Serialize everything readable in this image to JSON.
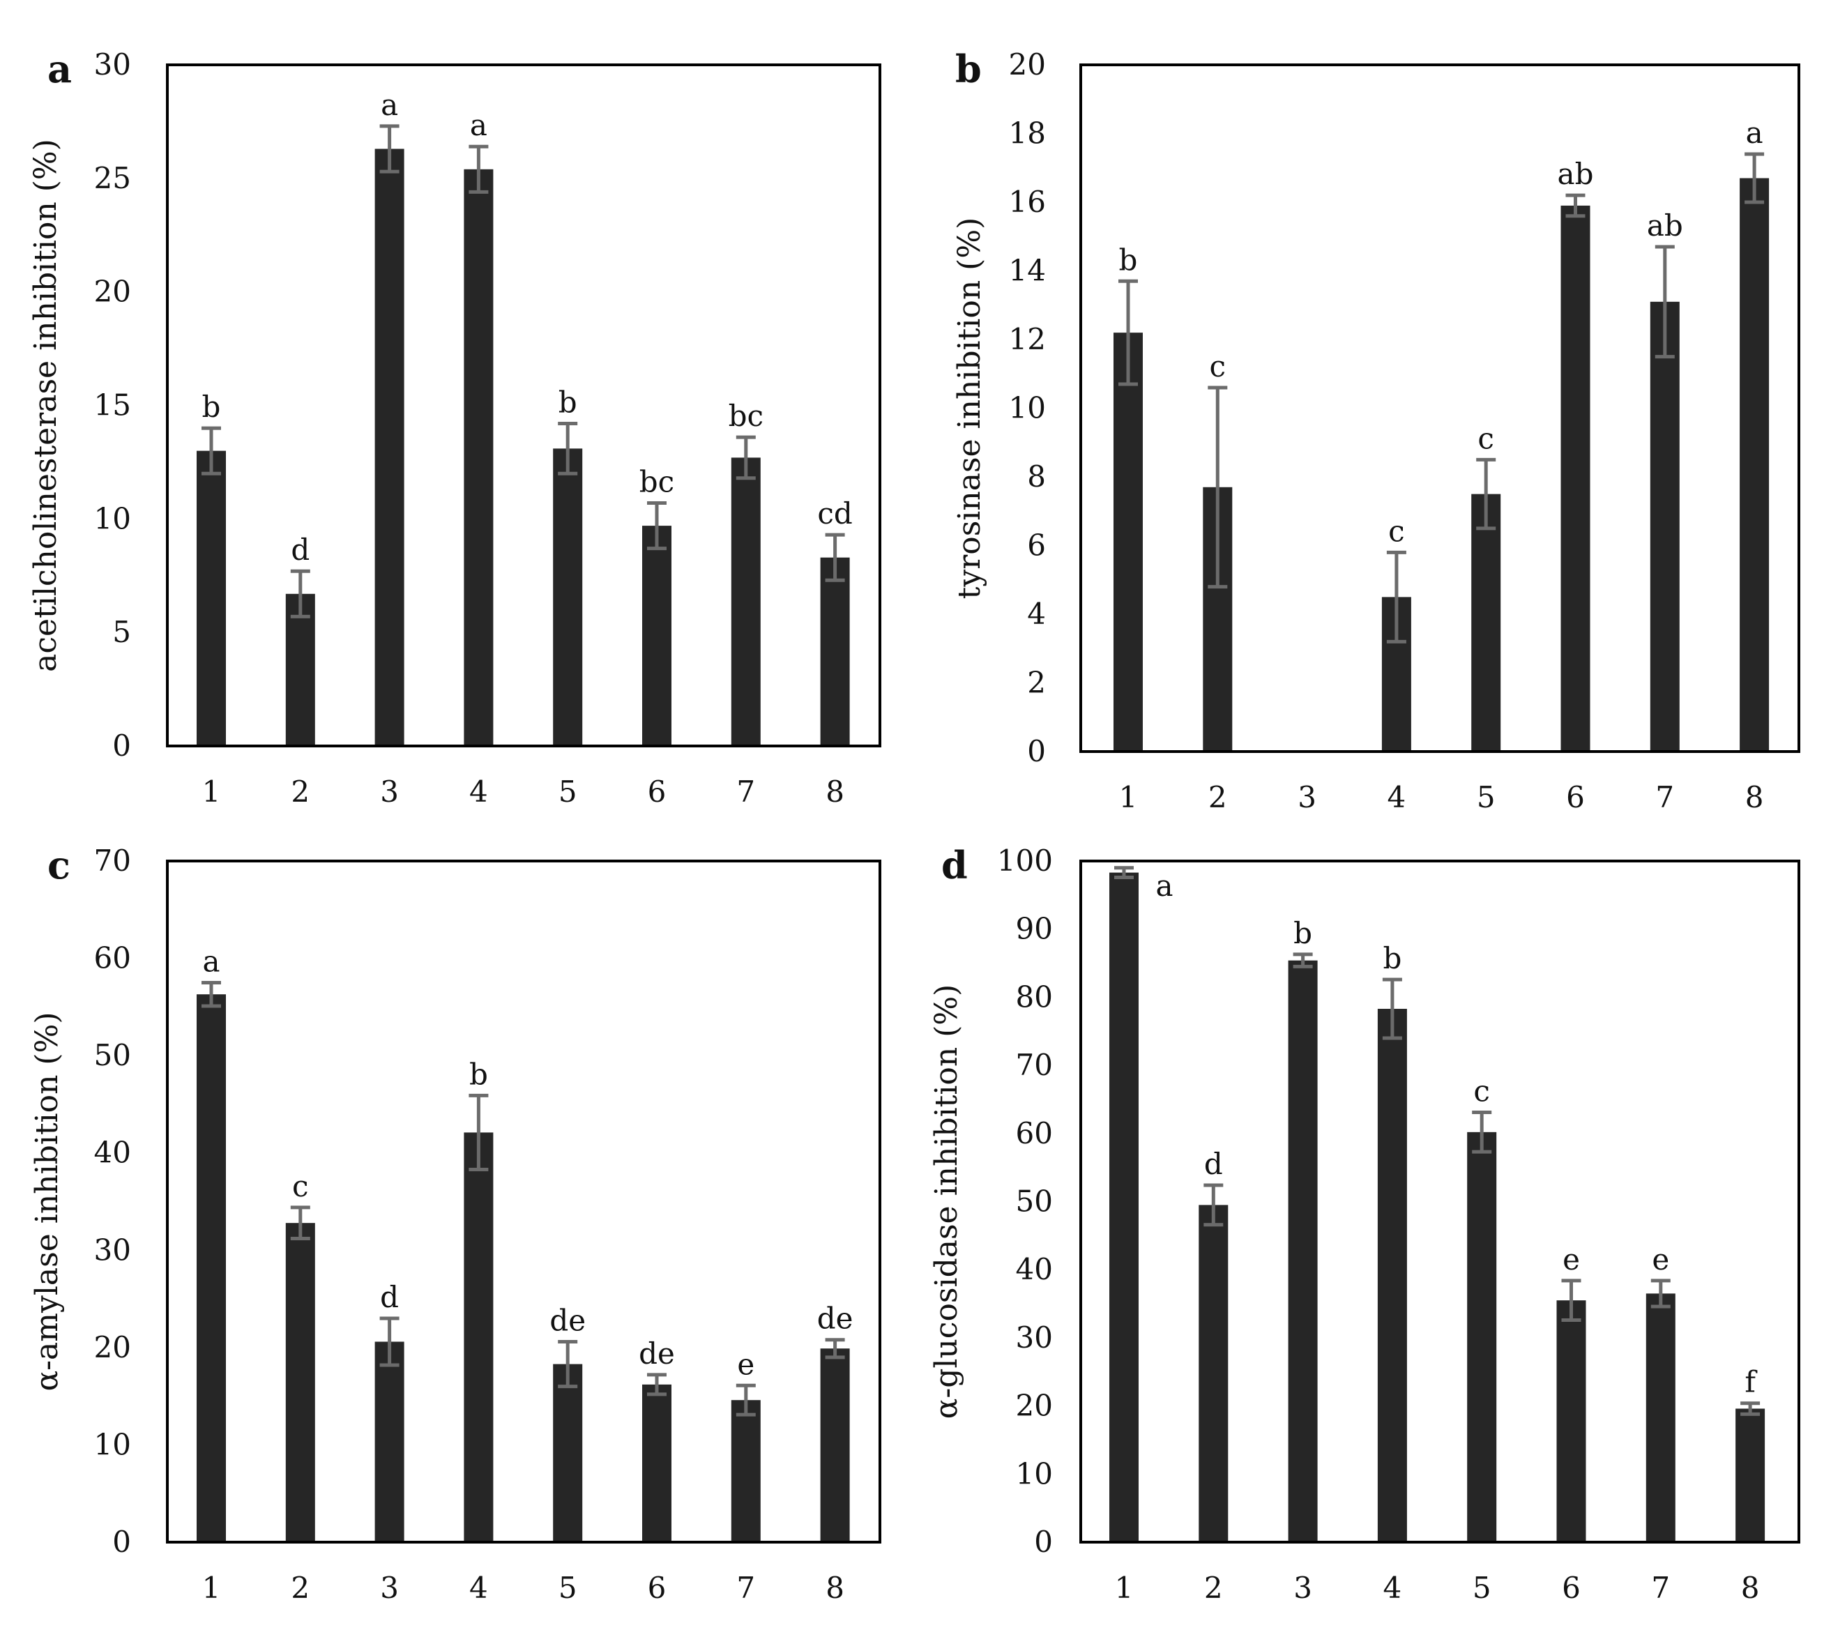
{
  "chart_data": [
    {
      "panel": "a",
      "type": "bar",
      "ylabel": "acetilcholinesterase inhibition (%)",
      "ylim": [
        0,
        30
      ],
      "yticks": [
        0,
        5,
        10,
        15,
        20,
        25,
        30
      ],
      "categories": [
        "1",
        "2",
        "3",
        "4",
        "5",
        "6",
        "7",
        "8"
      ],
      "values": [
        13.0,
        6.7,
        26.3,
        25.4,
        13.1,
        9.7,
        12.7,
        8.3
      ],
      "errors": [
        1.0,
        1.0,
        1.0,
        1.0,
        1.1,
        1.0,
        0.9,
        1.0
      ],
      "labels": [
        "b",
        "d",
        "a",
        "a",
        "b",
        "bc",
        "bc",
        "cd"
      ]
    },
    {
      "panel": "b",
      "type": "bar",
      "ylabel": "tyrosinase inhibition (%)",
      "ylim": [
        0,
        20
      ],
      "yticks": [
        0,
        2,
        4,
        6,
        8,
        10,
        12,
        14,
        16,
        18,
        20
      ],
      "categories": [
        "1",
        "2",
        "3",
        "4",
        "5",
        "6",
        "7",
        "8"
      ],
      "values": [
        12.2,
        7.7,
        null,
        4.5,
        7.5,
        15.9,
        13.1,
        16.7
      ],
      "errors": [
        1.5,
        2.9,
        null,
        1.3,
        1.0,
        0.3,
        1.6,
        0.7
      ],
      "labels": [
        "b",
        "c",
        "",
        "c",
        "c",
        "ab",
        "ab",
        "a"
      ]
    },
    {
      "panel": "c",
      "type": "bar",
      "ylabel": "α-amylase inhibition (%)",
      "ylim": [
        0,
        70
      ],
      "yticks": [
        0,
        10,
        20,
        30,
        40,
        50,
        60,
        70
      ],
      "categories": [
        "1",
        "2",
        "3",
        "4",
        "5",
        "6",
        "7",
        "8"
      ],
      "values": [
        56.3,
        32.8,
        20.6,
        42.1,
        18.3,
        16.2,
        14.6,
        19.9
      ],
      "errors": [
        1.2,
        1.6,
        2.4,
        3.8,
        2.3,
        1.0,
        1.5,
        0.9
      ],
      "labels": [
        "a",
        "c",
        "d",
        "b",
        "de",
        "de",
        "e",
        "de"
      ]
    },
    {
      "panel": "d",
      "type": "bar",
      "ylabel": "α-glucosidase inhibition (%)",
      "ylim": [
        0,
        100
      ],
      "yticks": [
        0,
        10,
        20,
        30,
        40,
        50,
        60,
        70,
        80,
        90,
        100
      ],
      "categories": [
        "1",
        "2",
        "3",
        "4",
        "5",
        "6",
        "7",
        "8"
      ],
      "values": [
        98.3,
        49.5,
        85.4,
        78.3,
        60.2,
        35.5,
        36.5,
        19.6
      ],
      "errors": [
        0.7,
        2.9,
        0.9,
        4.3,
        2.9,
        2.9,
        1.9,
        0.8
      ],
      "labels": [
        "a",
        "d",
        "b",
        "b",
        "c",
        "e",
        "e",
        "f"
      ]
    }
  ]
}
